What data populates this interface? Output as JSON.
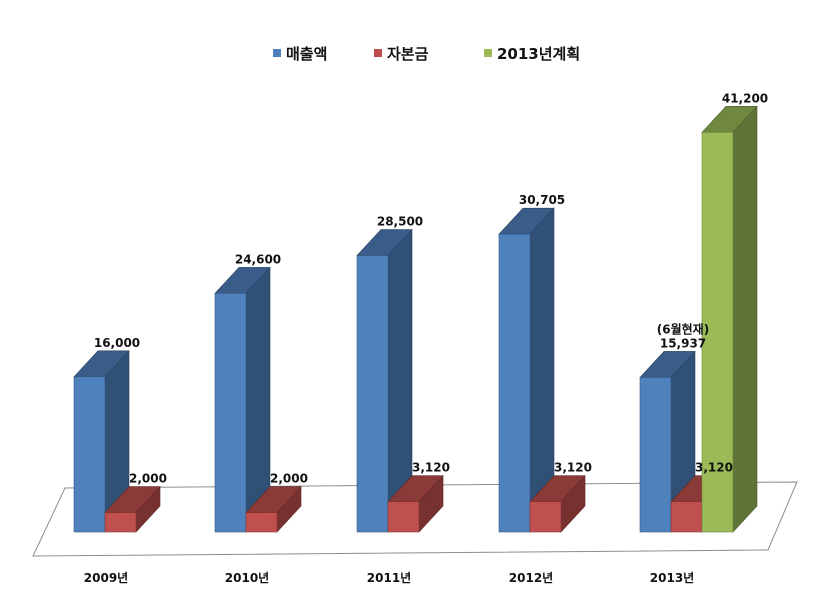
{
  "chart_data": {
    "type": "bar",
    "categories": [
      "2009년",
      "2010년",
      "2011년",
      "2012년",
      "2013년"
    ],
    "series": [
      {
        "name": "매출액",
        "color": "#4f81bd",
        "values": [
          16000,
          24600,
          28500,
          30705,
          15937
        ],
        "labels": [
          "16,000",
          "24,600",
          "28,500",
          "30,705",
          "15,937"
        ]
      },
      {
        "name": "자본금",
        "color": "#c0504d",
        "values": [
          2000,
          2000,
          3120,
          3120,
          3120
        ],
        "labels": [
          "2,000",
          "2,000",
          "3,120",
          "3,120",
          "3,120"
        ]
      },
      {
        "name": "2013년계획",
        "color": "#9bbb59",
        "values": [
          null,
          null,
          null,
          null,
          41200
        ],
        "labels": [
          "",
          "",
          "",
          "",
          "41,200"
        ]
      }
    ],
    "annotations": [
      {
        "category": "2013년",
        "series": "매출액",
        "text": "(6월현재)"
      }
    ],
    "legend_position": "top",
    "grid": false,
    "three_d": true
  }
}
